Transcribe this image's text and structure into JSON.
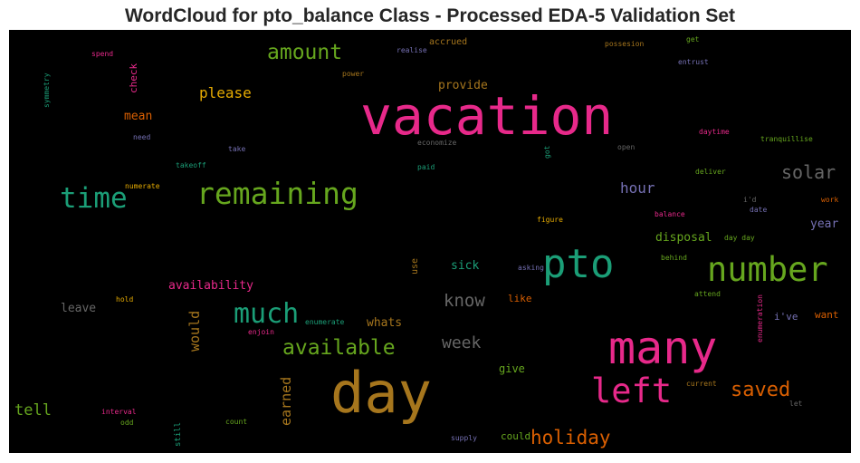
{
  "chart_data": {
    "type": "wordcloud",
    "title": "WordCloud for pto_balance Class - Processed EDA-5 Validation Set",
    "words": [
      {
        "text": "vacation",
        "size": 58,
        "color": "#e7298a"
      },
      {
        "text": "day",
        "size": 62,
        "color": "#a6761d"
      },
      {
        "text": "many",
        "size": 50,
        "color": "#e7298a"
      },
      {
        "text": "pto",
        "size": 44,
        "color": "#1b9e77"
      },
      {
        "text": "number",
        "size": 37,
        "color": "#66a61e"
      },
      {
        "text": "remaining",
        "size": 33,
        "color": "#66a61e"
      },
      {
        "text": "time",
        "size": 31,
        "color": "#1b9e77"
      },
      {
        "text": "left",
        "size": 37,
        "color": "#e7298a"
      },
      {
        "text": "much",
        "size": 30,
        "color": "#1b9e77"
      },
      {
        "text": "amount",
        "size": 23,
        "color": "#66a61e"
      },
      {
        "text": "available",
        "size": 23,
        "color": "#66a61e"
      },
      {
        "text": "solar",
        "size": 20,
        "color": "#666666"
      },
      {
        "text": "saved",
        "size": 22,
        "color": "#d95f02"
      },
      {
        "text": "holiday",
        "size": 21,
        "color": "#d95f02"
      },
      {
        "text": "know",
        "size": 19,
        "color": "#666666"
      },
      {
        "text": "week",
        "size": 18,
        "color": "#666666"
      },
      {
        "text": "hour",
        "size": 16,
        "color": "#7570b3"
      },
      {
        "text": "please",
        "size": 16,
        "color": "#e6ab02"
      },
      {
        "text": "provide",
        "size": 13,
        "color": "#a6761d"
      },
      {
        "text": "mean",
        "size": 13,
        "color": "#d95f02"
      },
      {
        "text": "disposal",
        "size": 13,
        "color": "#66a61e"
      },
      {
        "text": "availability",
        "size": 13,
        "color": "#e7298a"
      },
      {
        "text": "would",
        "size": 15,
        "color": "#a6761d"
      },
      {
        "text": "earned",
        "size": 15,
        "color": "#a6761d"
      },
      {
        "text": "tell",
        "size": 17,
        "color": "#66a61e"
      },
      {
        "text": "leave",
        "size": 13,
        "color": "#666666"
      },
      {
        "text": "whats",
        "size": 13,
        "color": "#a6761d"
      },
      {
        "text": "sick",
        "size": 13,
        "color": "#1b9e77"
      },
      {
        "text": "give",
        "size": 12,
        "color": "#66a61e"
      },
      {
        "text": "could",
        "size": 11,
        "color": "#66a61e"
      },
      {
        "text": "like",
        "size": 11,
        "color": "#d95f02"
      },
      {
        "text": "year",
        "size": 13,
        "color": "#7570b3"
      },
      {
        "text": "want",
        "size": 11,
        "color": "#d95f02"
      },
      {
        "text": "i've",
        "size": 11,
        "color": "#7570b3"
      },
      {
        "text": "check",
        "size": 11,
        "color": "#e7298a"
      },
      {
        "text": "accrued",
        "size": 10,
        "color": "#a6761d"
      },
      {
        "text": "use",
        "size": 10,
        "color": "#a6761d"
      },
      {
        "text": "still",
        "size": 9,
        "color": "#1b9e77"
      },
      {
        "text": "symmetry",
        "size": 8,
        "color": "#1b9e77"
      },
      {
        "text": "spend",
        "size": 8,
        "color": "#e7298a"
      },
      {
        "text": "realise",
        "size": 8,
        "color": "#7570b3"
      },
      {
        "text": "possesion",
        "size": 8,
        "color": "#a6761d"
      },
      {
        "text": "get",
        "size": 8,
        "color": "#66a61e"
      },
      {
        "text": "entrust",
        "size": 8,
        "color": "#7570b3"
      },
      {
        "text": "power",
        "size": 8,
        "color": "#a6761d"
      },
      {
        "text": "need",
        "size": 8,
        "color": "#7570b3"
      },
      {
        "text": "take",
        "size": 8,
        "color": "#7570b3"
      },
      {
        "text": "economize",
        "size": 8,
        "color": "#666666"
      },
      {
        "text": "got",
        "size": 8,
        "color": "#1b9e77"
      },
      {
        "text": "open",
        "size": 8,
        "color": "#666666"
      },
      {
        "text": "daytime",
        "size": 8,
        "color": "#e7298a"
      },
      {
        "text": "tranquillise",
        "size": 8,
        "color": "#66a61e"
      },
      {
        "text": "takeoff",
        "size": 8,
        "color": "#1b9e77"
      },
      {
        "text": "paid",
        "size": 8,
        "color": "#1b9e77"
      },
      {
        "text": "numerate",
        "size": 8,
        "color": "#e6ab02"
      },
      {
        "text": "deliver",
        "size": 8,
        "color": "#66a61e"
      },
      {
        "text": "i'd",
        "size": 8,
        "color": "#666666"
      },
      {
        "text": "work",
        "size": 8,
        "color": "#d95f02"
      },
      {
        "text": "balance",
        "size": 8,
        "color": "#e7298a"
      },
      {
        "text": "date",
        "size": 8,
        "color": "#7570b3"
      },
      {
        "text": "figure",
        "size": 8,
        "color": "#e6ab02"
      },
      {
        "text": "day day",
        "size": 8,
        "color": "#66a61e"
      },
      {
        "text": "asking",
        "size": 8,
        "color": "#7570b3"
      },
      {
        "text": "behind",
        "size": 8,
        "color": "#66a61e"
      },
      {
        "text": "hold",
        "size": 8,
        "color": "#e6ab02"
      },
      {
        "text": "attend",
        "size": 8,
        "color": "#66a61e"
      },
      {
        "text": "enumerate",
        "size": 8,
        "color": "#1b9e77"
      },
      {
        "text": "enjoin",
        "size": 8,
        "color": "#e7298a"
      },
      {
        "text": "enumeration",
        "size": 8,
        "color": "#e7298a"
      },
      {
        "text": "interval",
        "size": 8,
        "color": "#e7298a"
      },
      {
        "text": "current",
        "size": 8,
        "color": "#a6761d"
      },
      {
        "text": "let",
        "size": 8,
        "color": "#666666"
      },
      {
        "text": "odd",
        "size": 8,
        "color": "#66a61e"
      },
      {
        "text": "count",
        "size": 8,
        "color": "#66a61e"
      },
      {
        "text": "supply",
        "size": 8,
        "color": "#7570b3"
      }
    ]
  }
}
